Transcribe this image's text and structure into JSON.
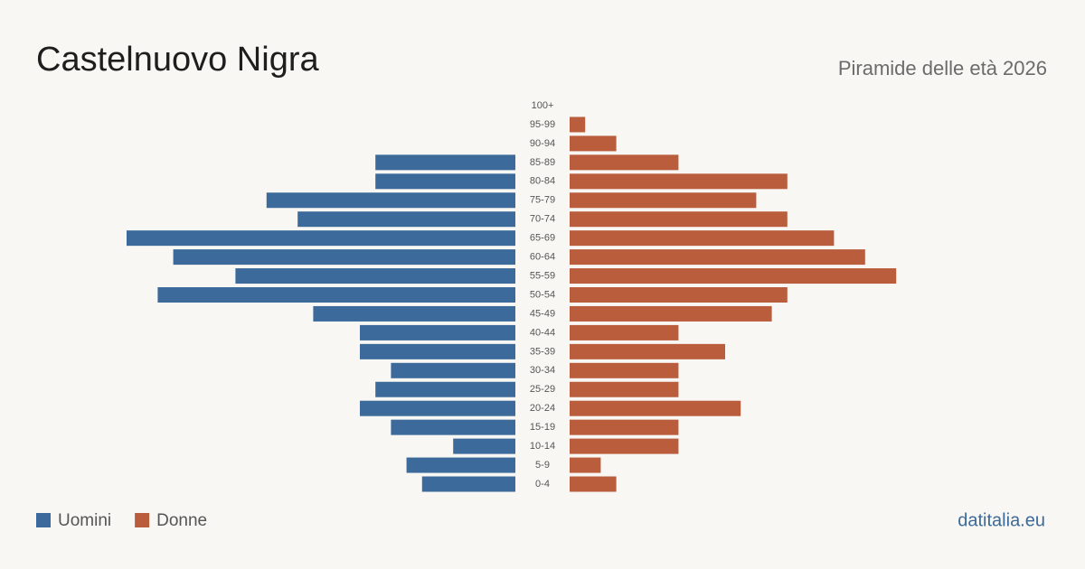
{
  "chart_data": {
    "type": "pyramid",
    "title": "Castelnuovo Nigra",
    "subtitle": "Piramide delle età 2026",
    "source": "datitalia.eu",
    "categories": [
      "100+",
      "95-99",
      "90-94",
      "85-89",
      "80-84",
      "75-79",
      "70-74",
      "65-69",
      "60-64",
      "55-59",
      "50-54",
      "45-49",
      "40-44",
      "35-39",
      "30-34",
      "25-29",
      "20-24",
      "15-19",
      "10-14",
      "5-9",
      "0-4"
    ],
    "series": [
      {
        "name": "Uomini",
        "color": "#3b6a9b",
        "values": [
          0,
          0,
          0,
          9,
          9,
          16,
          14,
          25,
          22,
          18,
          23,
          13,
          10,
          10,
          8,
          9,
          10,
          8,
          4,
          7,
          6
        ]
      },
      {
        "name": "Donne",
        "color": "#b95d3c",
        "values": [
          0,
          1,
          3,
          7,
          14,
          12,
          14,
          17,
          19,
          21,
          14,
          13,
          7,
          10,
          7,
          7,
          11,
          7,
          7,
          2,
          3
        ]
      }
    ]
  }
}
